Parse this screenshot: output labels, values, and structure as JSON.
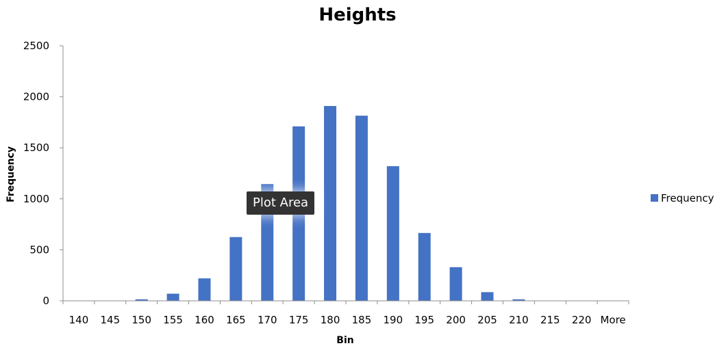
{
  "chart_data": {
    "type": "bar",
    "title": "Heights",
    "xlabel": "Bin",
    "ylabel": "Frequency",
    "categories": [
      "140",
      "145",
      "150",
      "155",
      "160",
      "165",
      "170",
      "175",
      "180",
      "185",
      "190",
      "195",
      "200",
      "205",
      "210",
      "215",
      "220",
      "More"
    ],
    "series": [
      {
        "name": "Frequency",
        "values": [
          0,
          0,
          15,
          70,
          220,
          625,
          1145,
          1710,
          1910,
          1815,
          1320,
          665,
          330,
          85,
          15,
          0,
          0,
          0
        ]
      }
    ],
    "ylim": [
      0,
      2500
    ],
    "yticks": [
      0,
      500,
      1000,
      1500,
      2000,
      2500
    ],
    "grid": false,
    "legend_position": "right"
  },
  "tooltip": {
    "text": "Plot Area"
  },
  "colors": {
    "bar": "#4472c4",
    "axis": "#8c8c8c",
    "tooltip_bg": "#333333"
  }
}
